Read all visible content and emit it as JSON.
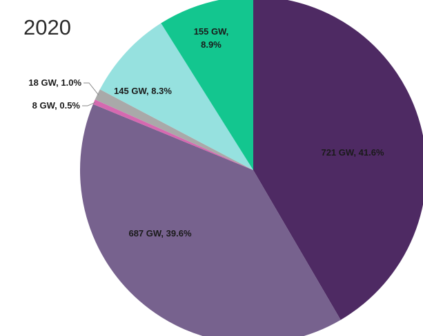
{
  "chart_data": {
    "type": "pie",
    "title": "2020",
    "start_angle_deg": 0,
    "direction": "clockwise",
    "slices": [
      {
        "value": 721,
        "percent": 41.6,
        "label": "721 GW, 41.6%",
        "color": "#4e2a63",
        "label_color": "#1a1a1a"
      },
      {
        "value": 687,
        "percent": 39.6,
        "label": "687 GW, 39.6%",
        "color": "#77628e",
        "label_color": "#1a1a1a"
      },
      {
        "value": 8,
        "percent": 0.5,
        "label": "8 GW, 0.5%",
        "color": "#d569b0",
        "label_color": "#1a1a1a"
      },
      {
        "value": 18,
        "percent": 1.0,
        "label": "18 GW, 1.0%",
        "color": "#a9a9a9",
        "label_color": "#1a1a1a"
      },
      {
        "value": 145,
        "percent": 8.3,
        "label": "145 GW, 8.3%",
        "color": "#96e1df",
        "label_color": "#1a1a1a"
      },
      {
        "value": 155,
        "percent": 8.9,
        "label_lines": [
          "155 GW,",
          "8.9%"
        ],
        "color": "#13c68f",
        "label_color": "#1a1a1a"
      }
    ]
  }
}
